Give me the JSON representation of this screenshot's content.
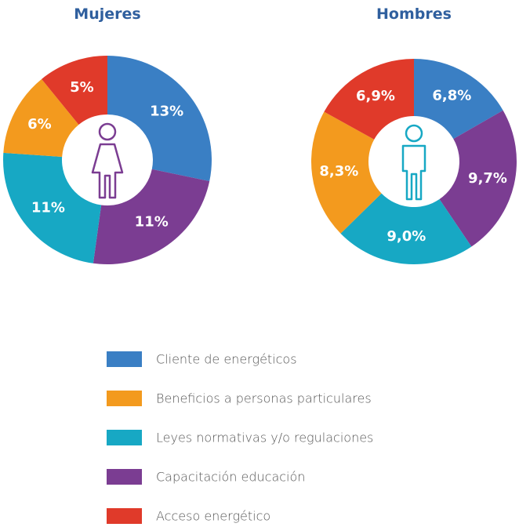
{
  "legend": {
    "categories": [
      "Cliente de energéticos",
      "Beneficios a personas particulares",
      "Leyes normativas y/o regulaciones",
      "Capacitación educación",
      "Acceso energético"
    ],
    "colors": [
      "#3a7fc4",
      "#f39a1e",
      "#17a8c4",
      "#7b3d92",
      "#e03a2a"
    ]
  },
  "chart_data": [
    {
      "type": "pie",
      "title": "Mujeres",
      "values": [
        13,
        6,
        11,
        11,
        5
      ],
      "value_labels": [
        "13%",
        "6%",
        "11%",
        "11%",
        "5%"
      ]
    },
    {
      "type": "pie",
      "title": "Hombres",
      "values": [
        6.8,
        8.3,
        9.0,
        9.7,
        6.9
      ],
      "value_labels": [
        "6,8%",
        "8,3%",
        "9,0%",
        "9,7%",
        "6,9%"
      ]
    }
  ]
}
